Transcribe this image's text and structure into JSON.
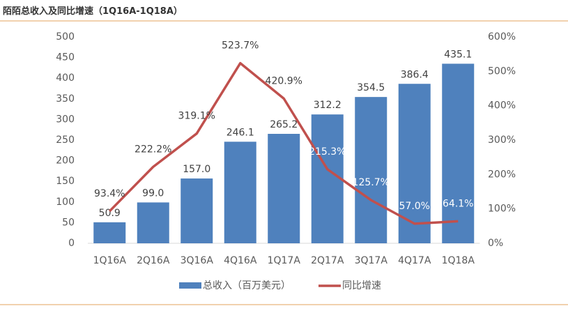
{
  "chart_data": {
    "type": "bar_line",
    "title": "陌陌总收入及同比增速（1Q16A-1Q18A）",
    "categories": [
      "1Q16A",
      "2Q16A",
      "3Q16A",
      "4Q16A",
      "1Q17A",
      "2Q17A",
      "3Q17A",
      "4Q17A",
      "1Q18A"
    ],
    "series": [
      {
        "name": "总收入（百万美元）",
        "type": "bar",
        "color": "#4f81bd",
        "values": [
          50.9,
          99.0,
          157.0,
          246.1,
          265.2,
          312.2,
          354.5,
          386.4,
          435.1
        ],
        "value_labels": [
          "50.9",
          "99.0",
          "157.0",
          "246.1",
          "265.2",
          "312.2",
          "354.5",
          "386.4",
          "435.1"
        ]
      },
      {
        "name": "同比增速",
        "type": "line",
        "axis": "y2",
        "color": "#c0504d",
        "values": [
          93.4,
          222.2,
          319.1,
          523.7,
          420.9,
          215.3,
          125.7,
          57.0,
          64.1
        ],
        "value_labels": [
          "93.4%",
          "222.2%",
          "319.1%",
          "523.7%",
          "420.9%",
          "215.3%",
          "125.7%",
          "57.0%",
          "64.1%"
        ]
      }
    ],
    "ylim": [
      0,
      500
    ],
    "yticks": [
      0,
      50,
      100,
      150,
      200,
      250,
      300,
      350,
      400,
      450,
      500
    ],
    "y2lim": [
      0,
      600
    ],
    "y2ticks": [
      {
        "value": 0,
        "label": "0%"
      },
      {
        "value": 100,
        "label": "100%"
      },
      {
        "value": 200,
        "label": "200%"
      },
      {
        "value": 300,
        "label": "300%"
      },
      {
        "value": 400,
        "label": "400%"
      },
      {
        "value": 500,
        "label": "500%"
      },
      {
        "value": 600,
        "label": "600%"
      }
    ],
    "legend": "bottom"
  }
}
